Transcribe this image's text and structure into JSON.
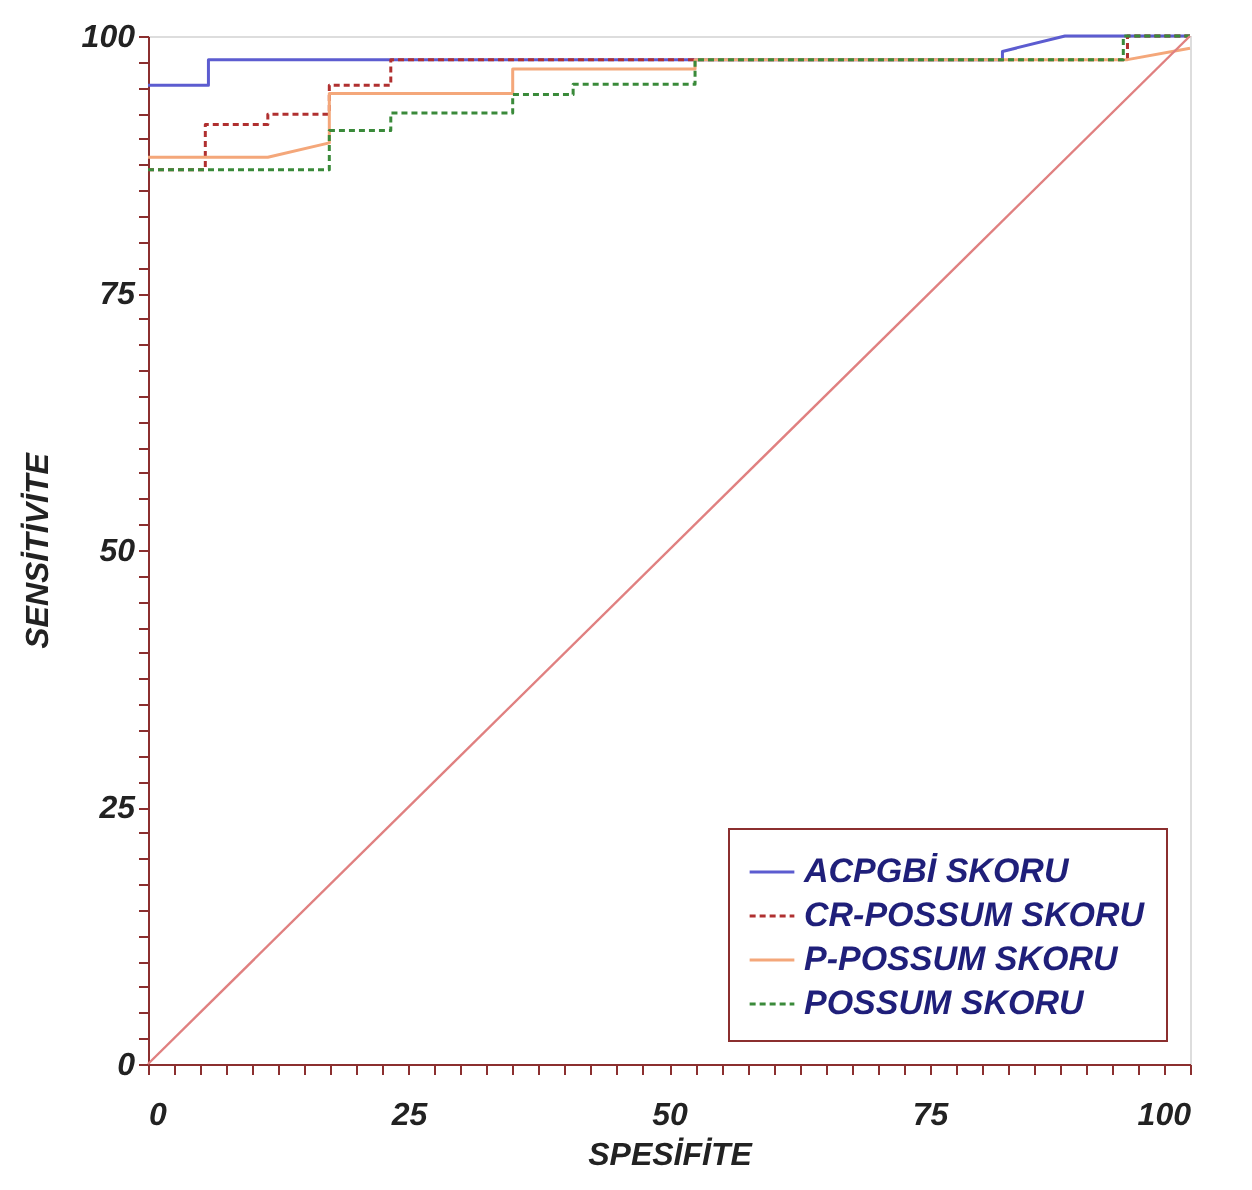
{
  "chart_data": {
    "type": "line",
    "xlabel": "SPESİFİTE",
    "ylabel": "SENSİTİVİTE",
    "xlim": [
      0,
      100
    ],
    "ylim": [
      0,
      100
    ],
    "xticks": [
      0,
      {
        "value": 2.5,
        "label": null
      },
      {
        "value": 5,
        "label": null
      },
      {
        "value": 7.5,
        "label": null
      },
      {
        "value": 10,
        "label": null
      },
      {
        "value": 12.5,
        "label": null
      },
      {
        "value": 15,
        "label": null
      },
      {
        "value": 17.5,
        "label": null
      },
      {
        "value": 20,
        "label": null
      },
      {
        "value": 22.5,
        "label": null
      },
      25,
      {
        "value": 27.5,
        "label": null
      },
      {
        "value": 30,
        "label": null
      },
      {
        "value": 32.5,
        "label": null
      },
      {
        "value": 35,
        "label": null
      },
      {
        "value": 37.5,
        "label": null
      },
      {
        "value": 40,
        "label": null
      },
      {
        "value": 42.5,
        "label": null
      },
      {
        "value": 45,
        "label": null
      },
      {
        "value": 47.5,
        "label": null
      },
      50,
      {
        "value": 52.5,
        "label": null
      },
      {
        "value": 55,
        "label": null
      },
      {
        "value": 57.5,
        "label": null
      },
      {
        "value": 60,
        "label": null
      },
      {
        "value": 62.5,
        "label": null
      },
      {
        "value": 65,
        "label": null
      },
      {
        "value": 67.5,
        "label": null
      },
      {
        "value": 70,
        "label": null
      },
      {
        "value": 72.5,
        "label": null
      },
      75,
      {
        "value": 77.5,
        "label": null
      },
      {
        "value": 80,
        "label": null
      },
      {
        "value": 82.5,
        "label": null
      },
      {
        "value": 85,
        "label": null
      },
      {
        "value": 87.5,
        "label": null
      },
      {
        "value": 90,
        "label": null
      },
      {
        "value": 92.5,
        "label": null
      },
      {
        "value": 95,
        "label": null
      },
      {
        "value": 97.5,
        "label": null
      },
      100
    ],
    "yticks": [
      0,
      {
        "value": 2.5,
        "label": null
      },
      {
        "value": 5,
        "label": null
      },
      {
        "value": 7.5,
        "label": null
      },
      {
        "value": 10,
        "label": null
      },
      {
        "value": 12.5,
        "label": null
      },
      {
        "value": 15,
        "label": null
      },
      {
        "value": 17.5,
        "label": null
      },
      {
        "value": 20,
        "label": null
      },
      {
        "value": 22.5,
        "label": null
      },
      25,
      {
        "value": 27.5,
        "label": null
      },
      {
        "value": 30,
        "label": null
      },
      {
        "value": 32.5,
        "label": null
      },
      {
        "value": 35,
        "label": null
      },
      {
        "value": 37.5,
        "label": null
      },
      {
        "value": 40,
        "label": null
      },
      {
        "value": 42.5,
        "label": null
      },
      {
        "value": 45,
        "label": null
      },
      {
        "value": 47.5,
        "label": null
      },
      50,
      {
        "value": 52.5,
        "label": null
      },
      {
        "value": 55,
        "label": null
      },
      {
        "value": 57.5,
        "label": null
      },
      {
        "value": 60,
        "label": null
      },
      {
        "value": 62.5,
        "label": null
      },
      {
        "value": 65,
        "label": null
      },
      {
        "value": 67.5,
        "label": null
      },
      {
        "value": 70,
        "label": null
      },
      {
        "value": 72.5,
        "label": null
      },
      75,
      {
        "value": 77.5,
        "label": null
      },
      {
        "value": 80,
        "label": null
      },
      {
        "value": 82.5,
        "label": null
      },
      {
        "value": 85,
        "label": null
      },
      {
        "value": 87.5,
        "label": null
      },
      {
        "value": 90,
        "label": null
      },
      {
        "value": 92.5,
        "label": null
      },
      {
        "value": 95,
        "label": null
      },
      {
        "value": 97.5,
        "label": null
      },
      100
    ],
    "grid": false,
    "legend": "bottom right",
    "marker": "none",
    "series": [
      {
        "name": "ACPGBİ SKORU",
        "color": "#5c5cd0",
        "line_style": "solid",
        "x": [
          0,
          5.8,
          5.8,
          82,
          82,
          88,
          100
        ],
        "values": [
          95.2,
          95.2,
          97.7,
          97.7,
          98.5,
          100,
          100
        ]
      },
      {
        "name": "CR-POSSUM SKORU",
        "color": "#b03030",
        "line_style": "dashed",
        "x": [
          0,
          5.5,
          5.5,
          11.5,
          11.5,
          17.4,
          17.4,
          23.3,
          23.3,
          94,
          94,
          100
        ],
        "values": [
          87,
          87,
          91.4,
          91.4,
          92.4,
          92.4,
          95.2,
          95.2,
          97.7,
          97.7,
          100,
          100
        ]
      },
      {
        "name": "P-POSSUM SKORU",
        "color": "#f4a77a",
        "line_style": "solid",
        "x": [
          0,
          11.5,
          17.4,
          17.4,
          35,
          35,
          52.5,
          52.5,
          94,
          100
        ],
        "values": [
          88.2,
          88.2,
          89.6,
          94.4,
          94.4,
          96.8,
          96.8,
          97.7,
          97.7,
          98.8
        ]
      },
      {
        "name": "POSSUM SKORU",
        "color": "#3a8a3a",
        "line_style": "dashed",
        "x": [
          0,
          17.4,
          17.4,
          23.3,
          23.3,
          35,
          35,
          40.8,
          40.8,
          52.5,
          52.5,
          93.6,
          93.6,
          100
        ],
        "values": [
          87,
          87,
          90.8,
          90.8,
          92.5,
          92.5,
          94.3,
          94.3,
          95.3,
          95.3,
          97.7,
          97.7,
          100,
          100
        ]
      },
      {
        "color": "#e08080",
        "line_style": "solid",
        "x": [
          0,
          100
        ],
        "values": [
          0,
          100
        ]
      }
    ]
  }
}
